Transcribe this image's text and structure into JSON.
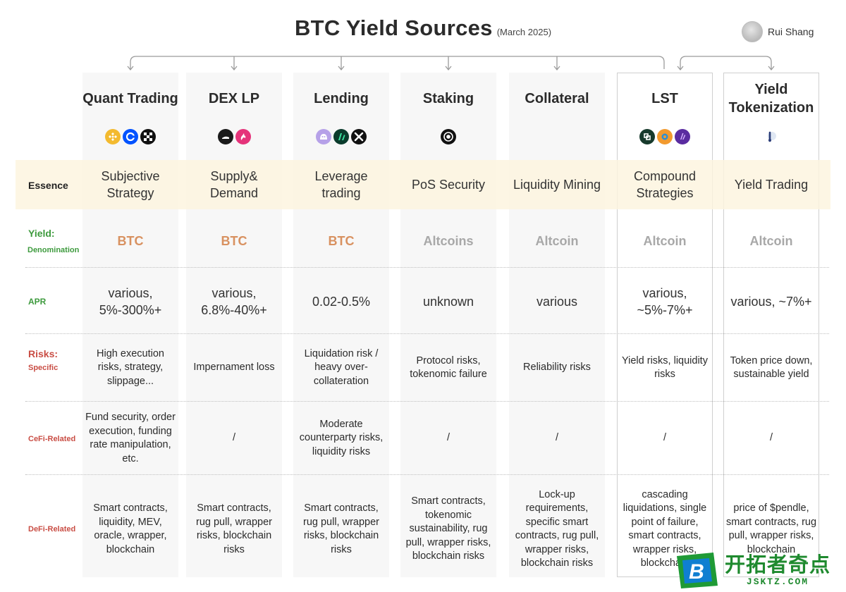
{
  "title": "BTC Yield Sources",
  "subtitle": "(March 2025)",
  "author": {
    "name": "Rui Shang"
  },
  "row_labels": {
    "essence": "Essence",
    "yield": "Yield:",
    "denomination": "Denomination",
    "apr": "APR",
    "risks": "Risks:",
    "specific": "Specific",
    "cefi": "CeFi-Related",
    "defi": "DeFi-Related"
  },
  "columns": [
    {
      "name": "Quant Trading",
      "icons": [
        "bnb-logo-icon",
        "coinbase-logo-icon",
        "okx-logo-icon"
      ],
      "essence": "Subjective Strategy",
      "denomination": "BTC",
      "apr": "various, 5%-300%+",
      "risk_specific": "High execution risks, strategy, slippage...",
      "risk_cefi": "Fund security, order execution, funding rate manipulation, etc.",
      "risk_defi": "Smart contracts, liquidity, MEV, oracle, wrapper, blockchain"
    },
    {
      "name": "DEX LP",
      "icons": [
        "dex-protocol-logo-icon",
        "unicorn-logo-icon"
      ],
      "essence": "Supply& Demand",
      "denomination": "BTC",
      "apr": "various, 6.8%-40%+",
      "risk_specific": "Impernament loss",
      "risk_cefi": "/",
      "risk_defi": "Smart contracts, rug pull, wrapper risks, blockchain risks"
    },
    {
      "name": "Lending",
      "icons": [
        "lending-protocol-logo-icon",
        "green-protocol-logo-icon",
        "x-protocol-logo-icon"
      ],
      "essence": "Leverage trading",
      "denomination": "BTC",
      "apr": "0.02-0.5%",
      "risk_specific": "Liquidation risk / heavy over-collateration",
      "risk_cefi": "Moderate counterparty risks, liquidity risks",
      "risk_defi": "Smart contracts, rug pull, wrapper risks, blockchain risks"
    },
    {
      "name": "Staking",
      "icons": [
        "staking-protocol-logo-icon"
      ],
      "essence": "PoS Security",
      "denomination": "Altcoins",
      "apr": "unknown",
      "risk_specific": "Protocol risks, tokenomic failure",
      "risk_cefi": "/",
      "risk_defi": "Smart contracts, tokenomic sustainability, rug pull, wrapper risks, blockchain risks"
    },
    {
      "name": "Collateral",
      "icons": [],
      "essence": "Liquidity Mining",
      "denomination": "Altcoin",
      "apr": "various",
      "risk_specific": "Reliability risks",
      "risk_cefi": "/",
      "risk_defi": "Lock-up requirements, specific smart contracts, rug pull, wrapper risks, blockchain risks"
    },
    {
      "name": "LST",
      "icons": [
        "lst-protocol-logo-icon",
        "orange-protocol-logo-icon",
        "purple-protocol-logo-icon"
      ],
      "essence": "Compound Strategies",
      "denomination": "Altcoin",
      "apr": "various, ~5%-7%+",
      "risk_specific": "Yield risks, liquidity risks",
      "risk_cefi": "/",
      "risk_defi": "cascading liquidations, single point of failure, smart contracts, wrapper risks, blockchain"
    },
    {
      "name": "Yield Tokenization",
      "icons": [
        "pendle-logo-icon"
      ],
      "essence": "Yield Trading",
      "denomination": "Altcoin",
      "apr": "various, ~7%+",
      "risk_specific": "Token price down, sustainable yield",
      "risk_cefi": "/",
      "risk_defi": "price of $pendle, smart contracts, rug pull, wrapper risks, blockchain"
    }
  ],
  "watermark": {
    "letter": "B",
    "text": "开拓者奇点",
    "url": "JSKTZ.COM"
  },
  "colors": {
    "btc": "#d89160",
    "altcoin": "#a8a8a8",
    "essence_band": "#fdf4de",
    "label_green": "#3d9a3d",
    "label_red": "#c94d44"
  }
}
